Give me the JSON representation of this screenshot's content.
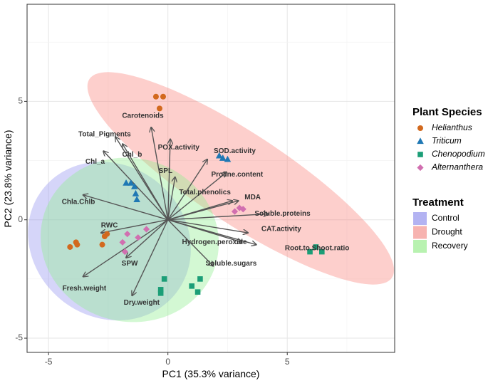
{
  "chart_data": {
    "type": "scatter",
    "subtype": "pca-biplot",
    "xlabel": "PC1 (35.3% variance)",
    "ylabel": "PC2 (23.8% variance)",
    "xlim": [
      -5.9,
      9.5
    ],
    "ylim": [
      -5.6,
      9.1
    ],
    "xticks": [
      -5,
      0,
      5
    ],
    "yticks": [
      -5,
      0,
      5
    ],
    "grid": true,
    "legend_position": "right",
    "species_legend": {
      "title": "Plant Species",
      "items": [
        {
          "name": "Helianthus",
          "shape": "circle",
          "color": "#D2691E"
        },
        {
          "name": "Triticum",
          "shape": "triangle",
          "color": "#1F78B4"
        },
        {
          "name": "Chenopodium",
          "shape": "square",
          "color": "#1B9E77"
        },
        {
          "name": "Alternanthera",
          "shape": "diamond",
          "color": "#D16FB0"
        }
      ]
    },
    "treatment_legend": {
      "title": "Treatment",
      "items": [
        {
          "name": "Control",
          "color": "#B3B3F2"
        },
        {
          "name": "Drought",
          "color": "#F7B3B0"
        },
        {
          "name": "Recovery",
          "color": "#B8F2B0"
        }
      ]
    },
    "ellipses": [
      {
        "treatment": "Drought",
        "center": [
          3.05,
          1.75
        ],
        "semi_axes": [
          7.6,
          1.9
        ],
        "angle_deg": -33.5,
        "color": "#F8766D",
        "opacity": 0.35
      },
      {
        "treatment": "Control",
        "center": [
          -2.45,
          -0.9
        ],
        "semi_axes": [
          3.55,
          3.2
        ],
        "angle_deg": -40,
        "color": "#8888EE",
        "opacity": 0.35
      },
      {
        "treatment": "Recovery",
        "center": [
          -1.6,
          -0.85
        ],
        "semi_axes": [
          3.75,
          3.45
        ],
        "angle_deg": -15,
        "color": "#90EE90",
        "opacity": 0.4
      }
    ],
    "points": [
      {
        "species": "Helianthus",
        "x": -0.5,
        "y": 5.2
      },
      {
        "species": "Helianthus",
        "x": -0.2,
        "y": 5.2
      },
      {
        "species": "Helianthus",
        "x": -0.35,
        "y": 4.7
      },
      {
        "species": "Helianthus",
        "x": -2.55,
        "y": -0.6
      },
      {
        "species": "Helianthus",
        "x": -2.65,
        "y": -0.7
      },
      {
        "species": "Helianthus",
        "x": -2.75,
        "y": -1.05
      },
      {
        "species": "Helianthus",
        "x": -3.85,
        "y": -0.95
      },
      {
        "species": "Helianthus",
        "x": -3.8,
        "y": -1.05
      },
      {
        "species": "Helianthus",
        "x": -4.1,
        "y": -1.15
      },
      {
        "species": "Triticum",
        "x": -1.75,
        "y": 1.55
      },
      {
        "species": "Triticum",
        "x": -1.55,
        "y": 1.55
      },
      {
        "species": "Triticum",
        "x": -1.4,
        "y": 1.4
      },
      {
        "species": "Triticum",
        "x": -1.35,
        "y": 1.1
      },
      {
        "species": "Triticum",
        "x": -1.3,
        "y": 0.85
      },
      {
        "species": "Triticum",
        "x": 2.15,
        "y": 2.7
      },
      {
        "species": "Triticum",
        "x": 2.3,
        "y": 2.6
      },
      {
        "species": "Triticum",
        "x": 2.5,
        "y": 2.55
      },
      {
        "species": "Chenopodium",
        "x": -0.15,
        "y": -2.5
      },
      {
        "species": "Chenopodium",
        "x": -0.3,
        "y": -2.95
      },
      {
        "species": "Chenopodium",
        "x": -0.3,
        "y": -3.1
      },
      {
        "species": "Chenopodium",
        "x": 1.0,
        "y": -2.8
      },
      {
        "species": "Chenopodium",
        "x": 1.25,
        "y": -3.05
      },
      {
        "species": "Chenopodium",
        "x": 1.35,
        "y": -2.5
      },
      {
        "species": "Chenopodium",
        "x": 5.95,
        "y": -1.35
      },
      {
        "species": "Chenopodium",
        "x": 6.2,
        "y": -1.15
      },
      {
        "species": "Chenopodium",
        "x": 6.45,
        "y": -1.35
      },
      {
        "species": "Alternanthera",
        "x": -1.9,
        "y": -0.95
      },
      {
        "species": "Alternanthera",
        "x": -1.7,
        "y": -0.6
      },
      {
        "species": "Alternanthera",
        "x": -1.25,
        "y": -0.75
      },
      {
        "species": "Alternanthera",
        "x": -0.9,
        "y": -0.4
      },
      {
        "species": "Alternanthera",
        "x": -1.8,
        "y": -1.35
      },
      {
        "species": "Alternanthera",
        "x": 2.8,
        "y": 0.35
      },
      {
        "species": "Alternanthera",
        "x": 3.0,
        "y": 0.5
      },
      {
        "species": "Alternanthera",
        "x": 3.15,
        "y": 0.45
      }
    ],
    "vectors": [
      {
        "name": "Carotenoids",
        "x": -0.7,
        "y": 3.9,
        "label_x": -1.05,
        "label_y": 4.38
      },
      {
        "name": "Total_Pigments",
        "x": -2.2,
        "y": 3.5,
        "label_x": -2.65,
        "label_y": 3.6
      },
      {
        "name": "Chl_b",
        "x": -1.9,
        "y": 3.2,
        "label_x": -1.5,
        "label_y": 2.75
      },
      {
        "name": "Chl_a",
        "x": -2.7,
        "y": 2.9,
        "label_x": -3.05,
        "label_y": 2.45
      },
      {
        "name": "POX.activity",
        "x": 0.1,
        "y": 3.4,
        "label_x": 0.45,
        "label_y": 3.05
      },
      {
        "name": "SPL",
        "x": 0.3,
        "y": 1.8,
        "label_x": -0.1,
        "label_y": 2.05
      },
      {
        "name": "SOD.activity",
        "x": 1.65,
        "y": 2.55,
        "label_x": 2.8,
        "label_y": 2.9
      },
      {
        "name": "Proline.content",
        "x": 2.45,
        "y": 2.0,
        "label_x": 2.9,
        "label_y": 1.9
      },
      {
        "name": "Total.phenolics",
        "x": 2.7,
        "y": 0.8,
        "label_x": 1.55,
        "label_y": 1.15
      },
      {
        "name": "MDA",
        "x": 2.95,
        "y": 0.8,
        "label_x": 3.55,
        "label_y": 0.95
      },
      {
        "name": "Soluble.proteins",
        "x": 4.2,
        "y": 0.25,
        "label_x": 4.8,
        "label_y": 0.25
      },
      {
        "name": "CAT.activity",
        "x": 3.35,
        "y": -0.55,
        "label_x": 4.75,
        "label_y": -0.4
      },
      {
        "name": "Hydrogen.peroxide",
        "x": 3.1,
        "y": -0.95,
        "label_x": 1.95,
        "label_y": -0.95
      },
      {
        "name": "Root.to.Shoot.ratio",
        "x": 3.7,
        "y": -1.05,
        "label_x": 6.25,
        "label_y": -1.2
      },
      {
        "name": "Soluble.sugars",
        "x": 1.9,
        "y": -1.95,
        "label_x": 2.65,
        "label_y": -1.85
      },
      {
        "name": "Chla.Chlb",
        "x": -3.55,
        "y": 1.05,
        "label_x": -3.75,
        "label_y": 0.75
      },
      {
        "name": "RWC",
        "x": -2.8,
        "y": -0.55,
        "label_x": -2.45,
        "label_y": -0.25
      },
      {
        "name": "SPW",
        "x": -1.75,
        "y": -1.6,
        "label_x": -1.6,
        "label_y": -1.85
      },
      {
        "name": "Fresh.weight",
        "x": -3.55,
        "y": -2.4,
        "label_x": -3.5,
        "label_y": -2.9
      },
      {
        "name": "Dry.weight",
        "x": -1.5,
        "y": -3.2,
        "label_x": -1.1,
        "label_y": -3.5
      }
    ]
  }
}
